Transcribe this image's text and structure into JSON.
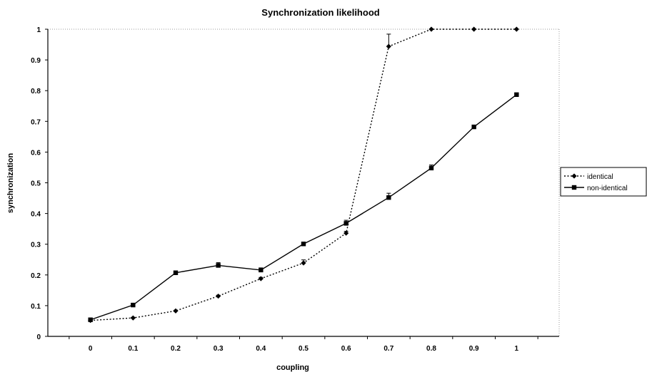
{
  "chart_data": {
    "type": "line",
    "title": "Synchronization likelihood",
    "xlabel": "coupling",
    "ylabel": "synchronization",
    "x": [
      0,
      0.1,
      0.2,
      0.3,
      0.4,
      0.5,
      0.6,
      0.7,
      0.8,
      0.9,
      1
    ],
    "x_tick_labels": [
      "0",
      "0.1",
      "0.2",
      "0.3",
      "0.4",
      "0.5",
      "0.6",
      "0.7",
      "0.8",
      "0.9",
      "1"
    ],
    "y_tick_labels": [
      "0",
      "0.1",
      "0.2",
      "0.3",
      "0.4",
      "0.5",
      "0.6",
      "0.7",
      "0.8",
      "0.9",
      "1"
    ],
    "y_ticks": [
      0,
      0.1,
      0.2,
      0.3,
      0.4,
      0.5,
      0.6,
      0.7,
      0.8,
      0.9,
      1
    ],
    "xlim": [
      -0.1,
      1.1
    ],
    "ylim": [
      0,
      1
    ],
    "grid": false,
    "legend_position": "right",
    "series": [
      {
        "name": "identical",
        "marker": "diamond",
        "line_style": "dotted",
        "color": "#000000",
        "values": [
          0.052,
          0.06,
          0.083,
          0.131,
          0.188,
          0.239,
          0.336,
          0.944,
          1.0,
          1.0,
          1.0
        ],
        "errors": [
          0.003,
          0.002,
          0.002,
          0.003,
          0.004,
          0.01,
          0.006,
          0.04,
          0,
          0,
          0
        ]
      },
      {
        "name": "non-identical",
        "marker": "square",
        "line_style": "solid",
        "color": "#000000",
        "values": [
          0.054,
          0.102,
          0.207,
          0.231,
          0.216,
          0.301,
          0.368,
          0.452,
          0.548,
          0.682,
          0.787
        ],
        "errors": [
          0.004,
          0.004,
          0.006,
          0.009,
          0.007,
          0.005,
          0.01,
          0.014,
          0.01,
          0.004,
          0.004
        ]
      }
    ]
  }
}
